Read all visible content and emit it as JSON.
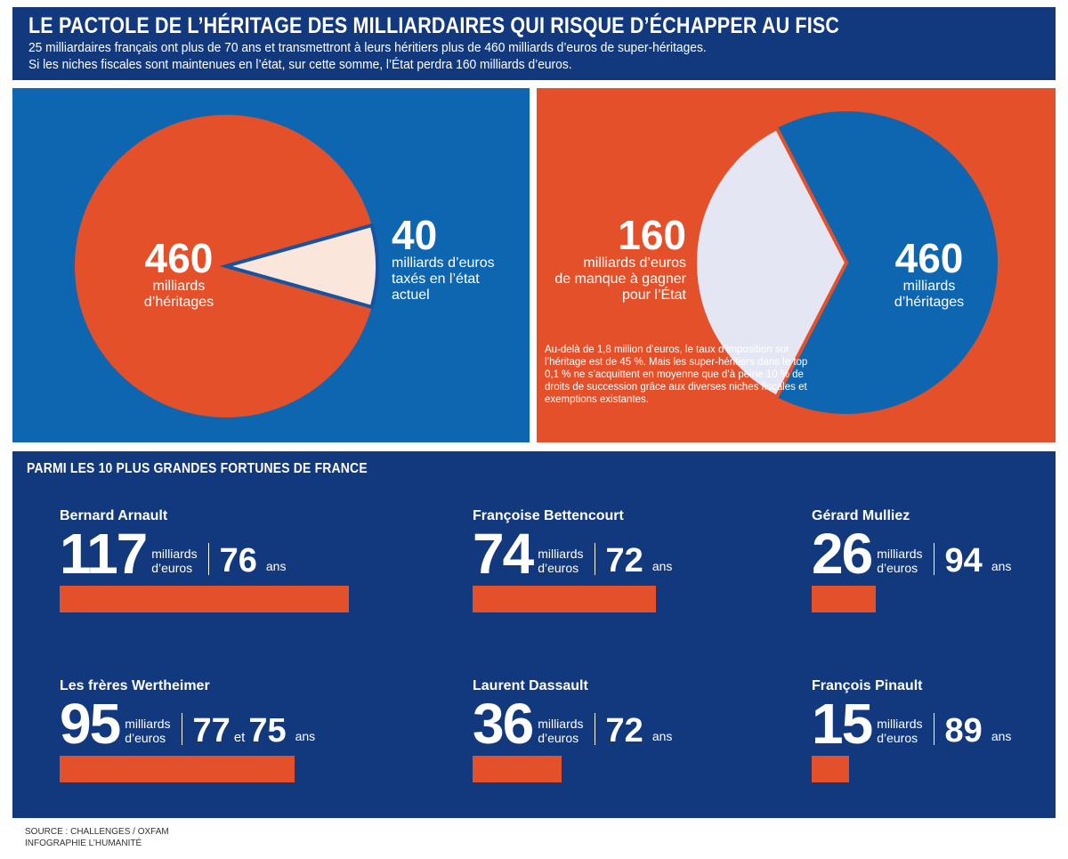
{
  "header": {
    "title": "LE PACTOLE DE L’HÉRITAGE DES MILLIARDAIRES QUI RISQUE D’ÉCHAPPER AU FISC",
    "line1": "25 milliardaires français ont plus de 70 ans et transmettront à leurs héritiers plus de 460 milliards d’euros de super-héritages.",
    "line2": "Si les niches fiscales sont maintenues en l’état, sur cette somme, l’État perdra 160 milliards d’euros."
  },
  "left_panel": {
    "main_value": "460",
    "main_label_1": "milliards",
    "main_label_2": "d’héritages",
    "slice_value": "40",
    "slice_label_1": "milliards d’euros",
    "slice_label_2": "taxés en l’état",
    "slice_label_3": "actuel"
  },
  "right_panel": {
    "main_value": "460",
    "main_label_1": "milliards",
    "main_label_2": "d’héritages",
    "slice_value": "160",
    "slice_label_1": "milliards d’euros",
    "slice_label_2": "de manque à gagner",
    "slice_label_3": "pour l’État",
    "note": "Au-delà de 1,8 million d’euros, le taux d’imposition sur l’héritage est de 45 %. Mais les super-héritiers dans le top 0,1 % ne s’acquittent en moyenne que d’à peine 10 % de droits de succession grâce aux diverses niches fiscales et exemptions existantes."
  },
  "fortunes": {
    "title": "PARMI LES 10 PLUS GRANDES FORTUNES DE FRANCE",
    "unit_1": "milliards",
    "unit_2": "d’euros",
    "ans": "ans",
    "et": "et",
    "people": [
      {
        "name": "Bernard Arnault",
        "amount": "117",
        "age": "76"
      },
      {
        "name": "Françoise Bettencourt",
        "amount": "74",
        "age": "72"
      },
      {
        "name": "Gérard Mulliez",
        "amount": "26",
        "age": "94"
      },
      {
        "name": "Les frères Wertheimer",
        "amount": "95",
        "age": "77",
        "age2": "75"
      },
      {
        "name": "Laurent Dassault",
        "amount": "36",
        "age": "72"
      },
      {
        "name": "François Pinault",
        "amount": "15",
        "age": "89"
      }
    ]
  },
  "footer": {
    "source": "SOURCE : CHALLENGES / OXFAM",
    "credit": "INFOGRAPHIE L’HUMANITÉ"
  },
  "chart_data": [
    {
      "type": "pie",
      "categories": [
        "milliards d’héritages",
        "milliards d’euros taxés en l’état actuel"
      ],
      "values": [
        460,
        40
      ],
      "colors": [
        "#e4502a",
        "#fbe6dc"
      ]
    },
    {
      "type": "pie",
      "categories": [
        "milliards d’héritages",
        "milliards d’euros de manque à gagner pour l’État"
      ],
      "values": [
        460,
        160
      ],
      "colors": [
        "#0f66b0",
        "#e4e7f3"
      ]
    },
    {
      "type": "bar",
      "title": "PARMI LES 10 PLUS GRANDES FORTUNES DE FRANCE",
      "categories": [
        "Bernard Arnault",
        "Françoise Bettencourt",
        "Gérard Mulliez",
        "Les frères Wertheimer",
        "Laurent Dassault",
        "François Pinault"
      ],
      "values": [
        117,
        74,
        26,
        95,
        36,
        15
      ],
      "colors": [
        "#e4502a"
      ]
    }
  ]
}
